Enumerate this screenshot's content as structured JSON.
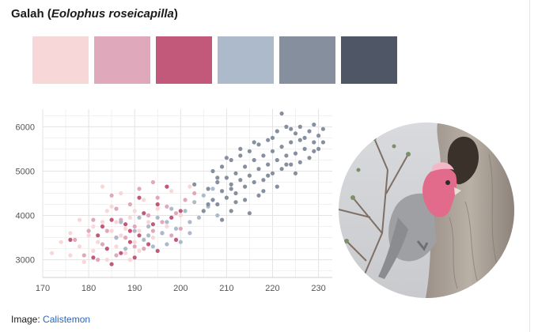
{
  "title": {
    "prefix": "Galah (",
    "scientific": "Eolophus roseicapilla",
    "suffix": ")"
  },
  "palette": [
    "#f7d7d7",
    "#e0a8bb",
    "#c2587a",
    "#adbacb",
    "#868f9e",
    "#4f5766"
  ],
  "chart_data": {
    "type": "scatter",
    "xlim": [
      170,
      233
    ],
    "ylim": [
      2600,
      6400
    ],
    "x_ticks": [
      170,
      180,
      190,
      200,
      210,
      220,
      230
    ],
    "y_ticks": [
      3000,
      4000,
      5000,
      6000
    ],
    "grid": true,
    "series": [
      {
        "color": "#f7d7d7",
        "points": [
          [
            172,
            3150
          ],
          [
            174,
            3400
          ],
          [
            176,
            3600
          ],
          [
            178,
            3300
          ],
          [
            178,
            3900
          ],
          [
            179,
            2950
          ],
          [
            180,
            3550
          ],
          [
            181,
            3750
          ],
          [
            181,
            3200
          ],
          [
            182,
            3400
          ],
          [
            183,
            4650
          ],
          [
            183,
            3850
          ],
          [
            184,
            3000
          ],
          [
            185,
            3650
          ],
          [
            185,
            4200
          ],
          [
            186,
            3300
          ],
          [
            186,
            3850
          ],
          [
            187,
            3550
          ],
          [
            187,
            4500
          ],
          [
            188,
            3150
          ],
          [
            188,
            3700
          ],
          [
            189,
            3950
          ],
          [
            190,
            3400
          ],
          [
            190,
            4100
          ],
          [
            191,
            3650
          ],
          [
            191,
            3200
          ],
          [
            192,
            4350
          ],
          [
            193,
            3850
          ],
          [
            194,
            3500
          ],
          [
            195,
            4150
          ],
          [
            197,
            3750
          ],
          [
            198,
            4550
          ],
          [
            200,
            4000
          ],
          [
            202,
            4650
          ],
          [
            176,
            3100
          ],
          [
            184,
            4100
          ],
          [
            189,
            3000
          ]
        ]
      },
      {
        "color": "#e0a8bb",
        "points": [
          [
            177,
            3450
          ],
          [
            179,
            3100
          ],
          [
            180,
            3650
          ],
          [
            181,
            3900
          ],
          [
            183,
            3350
          ],
          [
            184,
            3650
          ],
          [
            185,
            4450
          ],
          [
            186,
            3100
          ],
          [
            187,
            3900
          ],
          [
            188,
            3500
          ],
          [
            189,
            4250
          ],
          [
            190,
            3750
          ],
          [
            191,
            4600
          ],
          [
            192,
            3250
          ],
          [
            193,
            4000
          ],
          [
            194,
            3650
          ],
          [
            195,
            4400
          ],
          [
            196,
            3850
          ],
          [
            197,
            4200
          ],
          [
            198,
            3550
          ],
          [
            199,
            4050
          ],
          [
            200,
            3700
          ],
          [
            201,
            4350
          ],
          [
            182,
            3000
          ],
          [
            186,
            4150
          ],
          [
            190,
            3300
          ],
          [
            194,
            4750
          ],
          [
            203,
            4500
          ]
        ]
      },
      {
        "color": "#c2587a",
        "points": [
          [
            176,
            3450
          ],
          [
            181,
            3050
          ],
          [
            182,
            3550
          ],
          [
            183,
            3750
          ],
          [
            184,
            3250
          ],
          [
            185,
            3900
          ],
          [
            186,
            3500
          ],
          [
            187,
            3150
          ],
          [
            188,
            3800
          ],
          [
            189,
            3400
          ],
          [
            190,
            3050
          ],
          [
            191,
            3550
          ],
          [
            192,
            4050
          ],
          [
            193,
            3350
          ],
          [
            194,
            3800
          ],
          [
            195,
            4250
          ],
          [
            196,
            3600
          ],
          [
            197,
            4650
          ],
          [
            198,
            3950
          ],
          [
            199,
            3450
          ],
          [
            200,
            4100
          ],
          [
            185,
            2900
          ],
          [
            189,
            3650
          ],
          [
            191,
            4400
          ],
          [
            195,
            3200
          ]
        ]
      },
      {
        "color": "#adbacb",
        "points": [
          [
            186,
            3500
          ],
          [
            188,
            3250
          ],
          [
            190,
            3650
          ],
          [
            191,
            3950
          ],
          [
            192,
            3450
          ],
          [
            193,
            3750
          ],
          [
            194,
            3300
          ],
          [
            195,
            3950
          ],
          [
            196,
            3600
          ],
          [
            197,
            3850
          ],
          [
            198,
            4150
          ],
          [
            199,
            3700
          ],
          [
            200,
            3400
          ],
          [
            201,
            4100
          ],
          [
            202,
            3850
          ],
          [
            203,
            4300
          ],
          [
            204,
            3950
          ],
          [
            205,
            4450
          ],
          [
            206,
            4200
          ],
          [
            207,
            4600
          ],
          [
            208,
            4000
          ],
          [
            187,
            3850
          ],
          [
            193,
            3550
          ],
          [
            197,
            3350
          ],
          [
            202,
            3600
          ]
        ]
      },
      {
        "color": "#868f9e",
        "points": [
          [
            203,
            4700
          ],
          [
            205,
            4100
          ],
          [
            206,
            4600
          ],
          [
            207,
            4350
          ],
          [
            207,
            5000
          ],
          [
            208,
            4750
          ],
          [
            208,
            4250
          ],
          [
            209,
            4550
          ],
          [
            209,
            5100
          ],
          [
            210,
            4400
          ],
          [
            210,
            4850
          ],
          [
            211,
            4700
          ],
          [
            211,
            5250
          ],
          [
            212,
            4500
          ],
          [
            212,
            4950
          ],
          [
            213,
            4800
          ],
          [
            213,
            5350
          ],
          [
            214,
            4650
          ],
          [
            214,
            5100
          ],
          [
            215,
            4900
          ],
          [
            215,
            5450
          ],
          [
            216,
            4750
          ],
          [
            216,
            5250
          ],
          [
            217,
            5050
          ],
          [
            217,
            5600
          ],
          [
            218,
            4800
          ],
          [
            218,
            5350
          ],
          [
            219,
            5150
          ],
          [
            219,
            5700
          ],
          [
            220,
            4950
          ],
          [
            220,
            5450
          ],
          [
            221,
            5250
          ],
          [
            221,
            5900
          ],
          [
            222,
            5050
          ],
          [
            222,
            5550
          ],
          [
            223,
            5350
          ],
          [
            223,
            6000
          ],
          [
            224,
            5150
          ],
          [
            224,
            5650
          ],
          [
            225,
            5400
          ],
          [
            225,
            5850
          ],
          [
            226,
            5200
          ],
          [
            226,
            5700
          ],
          [
            227,
            5500
          ],
          [
            228,
            5300
          ],
          [
            228,
            5900
          ],
          [
            229,
            5650
          ],
          [
            229,
            6050
          ],
          [
            230,
            5500
          ],
          [
            230,
            5800
          ],
          [
            231,
            5950
          ],
          [
            231,
            5650
          ],
          [
            210,
            5300
          ],
          [
            212,
            4300
          ],
          [
            214,
            4350
          ],
          [
            216,
            5650
          ],
          [
            218,
            4550
          ],
          [
            220,
            5750
          ],
          [
            222,
            6300
          ],
          [
            224,
            5950
          ],
          [
            227,
            5750
          ],
          [
            229,
            5450
          ],
          [
            215,
            4050
          ],
          [
            211,
            4100
          ],
          [
            213,
            5500
          ],
          [
            206,
            4250
          ],
          [
            208,
            4850
          ],
          [
            219,
            4900
          ],
          [
            221,
            4650
          ],
          [
            217,
            4450
          ],
          [
            223,
            5150
          ],
          [
            225,
            4950
          ],
          [
            209,
            3900
          ],
          [
            211,
            4600
          ],
          [
            226,
            6000
          ]
        ]
      }
    ]
  },
  "photo": {
    "alt": "Galah perched at a tree hollow"
  },
  "credit": {
    "label": "Image: ",
    "link": "Calistemon"
  }
}
